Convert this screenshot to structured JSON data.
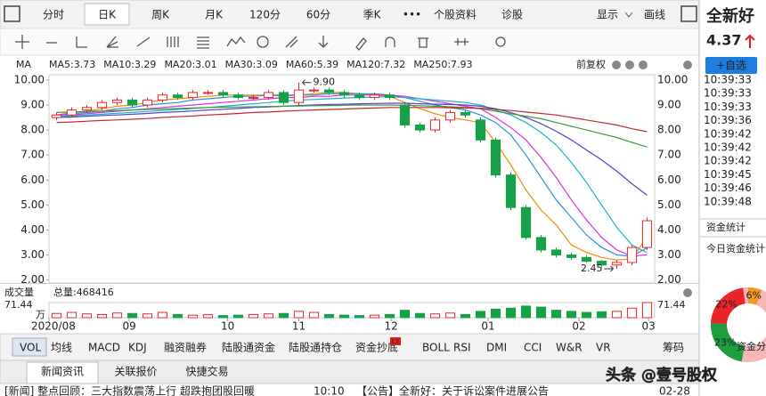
{
  "toolbar": {
    "tabs": [
      "分时",
      "日K",
      "周K",
      "月K",
      "120分",
      "60分",
      "季K",
      "•••",
      "个股资料",
      "诊股"
    ],
    "active": 1,
    "right": [
      "显示",
      "画线"
    ]
  },
  "stock": {
    "name": "全新好",
    "price": 4.37,
    "add_button": "+自选",
    "trades": [
      {
        "time": "10:39:33",
        "color": "#e0201c"
      },
      {
        "time": "10:39:33",
        "color": "#e0201c"
      },
      {
        "time": "10:39:33",
        "color": "#1a9a3a"
      },
      {
        "time": "10:39:36",
        "color": "#e0201c"
      },
      {
        "time": "10:39:42",
        "color": "#e0201c"
      },
      {
        "time": "10:39:42",
        "color": "#e0201c"
      },
      {
        "time": "10:39:42",
        "color": "#e0201c"
      },
      {
        "time": "10:39:45",
        "color": "#e0201c"
      },
      {
        "time": "10:39:46",
        "color": "#e0201c"
      },
      {
        "time": "10:39:48",
        "color": "#1a9a3a"
      }
    ],
    "fund_title": "资金统计",
    "fund_subtitle": "今日资金统计",
    "donut": {
      "center_label": "资金分",
      "values": [
        23,
        22,
        6
      ],
      "value_labels": [
        "23%",
        "22%",
        "6%"
      ],
      "colors": [
        "#1f9e3e",
        "#e8262a",
        "#f39a1e"
      ]
    }
  },
  "chart_data": {
    "type": "candlestick",
    "indicator": "MA",
    "adjust": "前复权",
    "open": [
      8.5,
      8.6,
      8.8,
      8.9,
      9.1,
      9.2,
      9.0,
      9.2,
      9.4,
      9.3,
      9.5,
      9.5,
      9.4,
      9.3,
      9.3,
      9.5,
      9.1,
      9.6,
      9.6,
      9.5,
      9.4,
      9.3,
      9.4,
      9.0,
      8.2,
      8.0,
      8.4,
      8.7,
      8.4,
      7.6,
      6.2,
      4.9,
      3.7,
      3.2,
      3.0,
      2.9,
      2.75,
      2.6,
      2.7,
      3.3
    ],
    "high": [
      8.7,
      8.9,
      9.0,
      9.2,
      9.3,
      9.3,
      9.3,
      9.5,
      9.5,
      9.6,
      9.6,
      9.6,
      9.5,
      9.4,
      9.6,
      9.6,
      9.9,
      9.7,
      9.7,
      9.6,
      9.5,
      9.5,
      9.5,
      9.1,
      8.3,
      8.5,
      8.8,
      8.8,
      8.5,
      7.7,
      6.3,
      5.0,
      3.8,
      3.3,
      3.1,
      3.0,
      2.8,
      2.8,
      3.4,
      4.5
    ],
    "low": [
      8.4,
      8.5,
      8.7,
      8.8,
      9.0,
      8.9,
      8.9,
      9.1,
      9.2,
      9.2,
      9.4,
      9.3,
      9.2,
      9.2,
      9.2,
      9.0,
      9.0,
      9.5,
      9.4,
      9.3,
      9.2,
      9.2,
      9.2,
      8.1,
      7.9,
      7.9,
      8.3,
      8.5,
      7.5,
      6.1,
      4.8,
      3.6,
      3.1,
      2.9,
      2.8,
      2.7,
      2.5,
      2.45,
      2.6,
      3.2
    ],
    "close": [
      8.6,
      8.8,
      8.9,
      9.1,
      9.2,
      9.0,
      9.2,
      9.4,
      9.3,
      9.5,
      9.5,
      9.4,
      9.3,
      9.3,
      9.5,
      9.1,
      9.6,
      9.6,
      9.5,
      9.4,
      9.3,
      9.4,
      9.3,
      8.2,
      8.0,
      8.4,
      8.7,
      8.6,
      7.6,
      6.2,
      4.9,
      3.7,
      3.2,
      3.0,
      2.9,
      2.75,
      2.6,
      2.7,
      3.3,
      4.37
    ],
    "up_color": "#e8262a",
    "down_color": "#16a04a",
    "xlim": [
      0,
      40
    ],
    "xticks": [
      {
        "value": 0,
        "label": "2020/08"
      },
      {
        "value": 5.3,
        "label": "09"
      },
      {
        "value": 11.8,
        "label": "10"
      },
      {
        "value": 16.5,
        "label": "11"
      },
      {
        "value": 22.6,
        "label": "12"
      },
      {
        "value": 29,
        "label": "01"
      },
      {
        "value": 35,
        "label": "02"
      },
      {
        "value": 39.6,
        "label": "03"
      }
    ],
    "ylim": [
      1.88,
      10.21
    ],
    "yticks": [
      {
        "value": 2,
        "label": "2.00"
      },
      {
        "value": 3,
        "label": "3.00"
      },
      {
        "value": 4,
        "label": "4.00"
      },
      {
        "value": 5,
        "label": "5.00"
      },
      {
        "value": 6,
        "label": "6.00"
      },
      {
        "value": 7,
        "label": "7.00"
      },
      {
        "value": 8,
        "label": "8.00"
      },
      {
        "value": 9,
        "label": "9.00"
      },
      {
        "value": 10,
        "label": "10.00"
      }
    ],
    "series": [
      {
        "name": "MA5:3.73",
        "color": "#f08c00",
        "values": [
          8.6,
          8.7,
          8.75,
          8.85,
          8.95,
          9.0,
          9.1,
          9.2,
          9.25,
          9.3,
          9.35,
          9.4,
          9.4,
          9.4,
          9.4,
          9.35,
          9.4,
          9.45,
          9.5,
          9.5,
          9.45,
          9.4,
          9.35,
          9.1,
          8.85,
          8.65,
          8.5,
          8.4,
          8.3,
          7.5,
          6.6,
          5.6,
          4.8,
          4.2,
          3.4,
          3.1,
          2.9,
          2.8,
          2.85,
          3.73
        ]
      },
      {
        "name": "MA10:3.29",
        "color": "#2f8fe0",
        "values": [
          8.6,
          8.65,
          8.7,
          8.75,
          8.85,
          8.9,
          9.0,
          9.05,
          9.1,
          9.2,
          9.25,
          9.3,
          9.35,
          9.35,
          9.4,
          9.4,
          9.4,
          9.4,
          9.45,
          9.45,
          9.45,
          9.45,
          9.4,
          9.3,
          9.15,
          9.0,
          8.9,
          8.8,
          8.6,
          8.3,
          7.8,
          7.0,
          6.1,
          5.2,
          4.5,
          3.8,
          3.3,
          3.0,
          2.95,
          3.29
        ]
      },
      {
        "name": "MA20:3.01",
        "color": "#e030d8",
        "values": [
          8.6,
          8.6,
          8.65,
          8.7,
          8.75,
          8.8,
          8.85,
          8.9,
          8.95,
          9.0,
          9.05,
          9.1,
          9.15,
          9.2,
          9.25,
          9.3,
          9.3,
          9.35,
          9.35,
          9.4,
          9.4,
          9.4,
          9.4,
          9.35,
          9.25,
          9.15,
          9.05,
          8.95,
          8.85,
          8.5,
          8.1,
          7.6,
          6.9,
          6.1,
          5.2,
          4.4,
          3.7,
          3.2,
          2.95,
          3.01
        ]
      },
      {
        "name": "MA30:3.09",
        "color": "#18b4c8",
        "values": [
          8.55,
          8.57,
          8.6,
          8.63,
          8.67,
          8.7,
          8.74,
          8.78,
          8.82,
          8.86,
          8.9,
          8.95,
          9.0,
          9.05,
          9.1,
          9.15,
          9.2,
          9.22,
          9.25,
          9.28,
          9.3,
          9.32,
          9.33,
          9.3,
          9.25,
          9.2,
          9.15,
          9.1,
          9.0,
          8.8,
          8.6,
          8.3,
          7.9,
          7.4,
          6.7,
          5.9,
          5.0,
          4.1,
          3.4,
          3.09
        ]
      },
      {
        "name": "MA60:5.39",
        "color": "#5a3fd0",
        "values": [
          8.5,
          8.52,
          8.55,
          8.58,
          8.6,
          8.63,
          8.66,
          8.7,
          8.73,
          8.76,
          8.8,
          8.83,
          8.86,
          8.9,
          8.92,
          8.95,
          8.98,
          9.0,
          9.02,
          9.03,
          9.05,
          9.06,
          9.07,
          9.07,
          9.05,
          9.03,
          9.02,
          9.0,
          8.95,
          8.85,
          8.7,
          8.5,
          8.25,
          7.95,
          7.6,
          7.2,
          6.8,
          6.35,
          5.85,
          5.39
        ]
      },
      {
        "name": "MA120:7.32",
        "color": "#3a9a3a",
        "values": [
          8.7,
          8.72,
          8.74,
          8.76,
          8.78,
          8.8,
          8.82,
          8.84,
          8.86,
          8.88,
          8.9,
          8.91,
          8.92,
          8.93,
          8.94,
          8.95,
          8.96,
          8.97,
          8.98,
          8.99,
          9.0,
          9.0,
          9.0,
          8.99,
          8.97,
          8.95,
          8.93,
          8.9,
          8.85,
          8.75,
          8.65,
          8.55,
          8.45,
          8.3,
          8.15,
          8.0,
          7.85,
          7.7,
          7.5,
          7.32
        ]
      },
      {
        "name": "MA250:7.93",
        "color": "#c0282e",
        "values": [
          8.3,
          8.32,
          8.35,
          8.38,
          8.4,
          8.43,
          8.46,
          8.5,
          8.53,
          8.56,
          8.6,
          8.63,
          8.66,
          8.7,
          8.72,
          8.75,
          8.78,
          8.8,
          8.82,
          8.84,
          8.86,
          8.88,
          8.9,
          8.9,
          8.9,
          8.9,
          8.89,
          8.88,
          8.87,
          8.83,
          8.78,
          8.72,
          8.66,
          8.6,
          8.5,
          8.4,
          8.3,
          8.2,
          8.05,
          7.93
        ]
      }
    ],
    "max_label": {
      "value": 9.9,
      "label": "9.90"
    },
    "min_label": {
      "value": 2.45,
      "label": "2.45"
    },
    "volume": {
      "title": "成交量",
      "total_label": "总量:468416",
      "unit": "万",
      "ylim": [
        0,
        71.44
      ],
      "yticks": [
        71.44
      ],
      "values": [
        20,
        25,
        18,
        15,
        22,
        20,
        18,
        25,
        15,
        12,
        14,
        10,
        12,
        15,
        18,
        20,
        30,
        25,
        15,
        12,
        10,
        12,
        15,
        35,
        20,
        18,
        22,
        15,
        30,
        40,
        45,
        55,
        50,
        35,
        30,
        25,
        28,
        30,
        45,
        71.44
      ]
    }
  },
  "indicator_tabs": {
    "tabs": [
      "VOL",
      "均线",
      "MACD",
      "KDJ",
      "融资融券",
      "陆股通资金",
      "陆股通持仓",
      "资金抄底",
      "BOLL",
      "RSI",
      "DMI",
      "CCI",
      "W&R",
      "VR",
      "筹码"
    ],
    "badge": "L2"
  },
  "bottom": {
    "tabs": [
      "新闻资讯",
      "关联报价",
      "快捷交易"
    ],
    "news_title": "[新闻] 整点回顾：三大指数震荡上行 超跌抱团股回暖",
    "news_time": "10:10",
    "notice_title": "【公告】全新好：关于诉讼案件进展公告",
    "notice_date": "02-28",
    "watermark": "头条 @壹号股权"
  }
}
